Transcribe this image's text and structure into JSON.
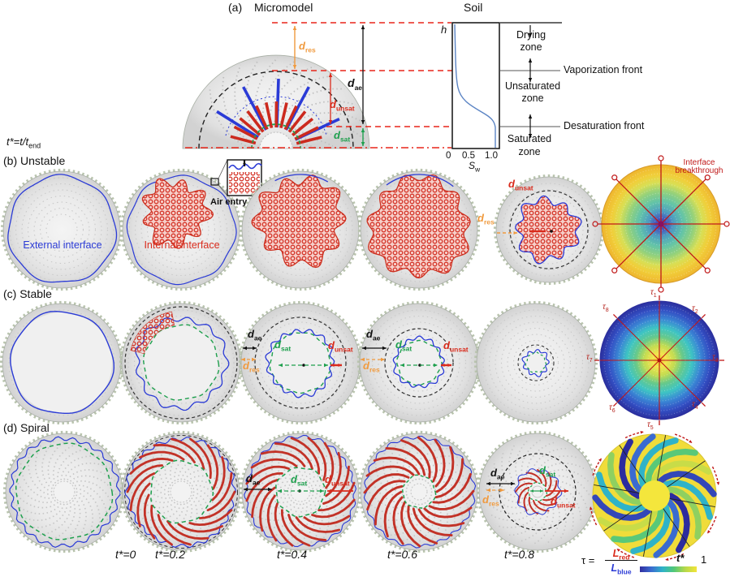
{
  "colors": {
    "red": "#d92b1c",
    "orange": "#f09a3e",
    "green": "#1fa04e",
    "blue": "#2b3bd6",
    "dark_red": "#b5231d",
    "dashed_red_line": "#e8251a",
    "heat_yellow": "#f2e43a"
  },
  "sym": {
    "d": "d",
    "tau": "τ",
    "res": "res",
    "ae": "ae",
    "unsat": "unsat",
    "sat": "sat"
  },
  "panel_a": {
    "tag": "(a)",
    "micromodel_title": "Micromodel",
    "soil_title": "Soil",
    "t_def_main": "t*=t/t",
    "t_def_sub": "end",
    "h_label": "h",
    "ticks": [
      "0",
      "0.5",
      "1.0"
    ],
    "sw_main": "S",
    "sw_sub": "w",
    "zone_drying_1": "Drying",
    "zone_drying_2": "zone",
    "zone_unsat_1": "Unsaturated",
    "zone_unsat_2": "zone",
    "zone_sat_1": "Saturated",
    "zone_sat_2": "zone",
    "front_vaporization": "Vaporization front",
    "front_desaturation": "Desaturation front"
  },
  "row_b": {
    "tag": "(b) Unstable",
    "external_interface": "External interface",
    "internal_interface": "Internal interface",
    "air_entry": "Air entry",
    "breakthrough_1": "Interface",
    "breakthrough_2": "breakthrough"
  },
  "row_c": {
    "tag": "(c) Stable",
    "tau_subs": [
      "1",
      "2",
      "3",
      "4",
      "5",
      "6",
      "7",
      "8"
    ]
  },
  "row_d": {
    "tag": "(d) Spiral"
  },
  "timeline": [
    "t*=0",
    "t*=0.2",
    "t*=0.4",
    "t*=0.6",
    "t*=0.8"
  ],
  "legend": {
    "tau_eq_lhs": "τ =",
    "num_main": "L",
    "num_sub": "red",
    "den_main": "L",
    "den_sub": "blue",
    "tstar": "t*",
    "max": "1"
  },
  "chart_data": {
    "type": "line",
    "title": "Soil",
    "xlabel": "S_w",
    "ylabel": "h",
    "xlim": [
      0,
      1.0
    ],
    "x_ticks": [
      0,
      0.5,
      1.0
    ],
    "grid": false,
    "legend": false,
    "series": [
      {
        "name": "water saturation profile",
        "x": [
          0.05,
          0.05,
          0.06,
          0.1,
          0.3,
          0.7,
          0.95,
          1.0,
          1.0
        ],
        "y_rel_height": [
          1.0,
          0.78,
          0.7,
          0.62,
          0.55,
          0.48,
          0.43,
          0.41,
          0.0
        ]
      }
    ],
    "annotations": [
      "Drying zone",
      "Vaporization front",
      "Unsaturated zone",
      "Desaturation front",
      "Saturated zone"
    ]
  }
}
